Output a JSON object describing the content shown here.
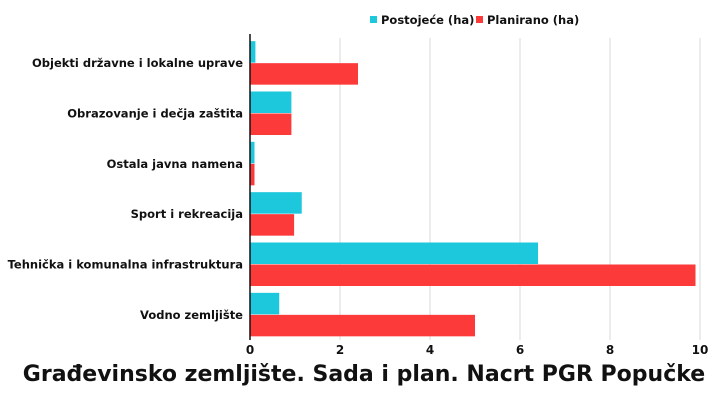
{
  "chart_data": {
    "type": "bar",
    "orientation": "horizontal",
    "title": "Građevinsko zemljište. Sada i plan. Nacrt PGR Popučke",
    "categories": [
      "Objekti državne i lokalne uprave",
      "Obrazovanje i dečja zaštita",
      "Ostala javna namena",
      "Sport i rekreacija",
      "Tehnička i komunalna infrastruktura",
      "Vodno zemljište"
    ],
    "series": [
      {
        "name": "Postojeće (ha)",
        "color": "#1ec8dc",
        "values": [
          0.12,
          0.92,
          0.1,
          1.15,
          6.4,
          0.65
        ]
      },
      {
        "name": "Planirano (ha)",
        "color": "#fc3a3a",
        "values": [
          2.4,
          0.92,
          0.1,
          0.98,
          9.9,
          5.0
        ]
      }
    ],
    "xlim": [
      0,
      10
    ],
    "xticks": [
      "0",
      "2",
      "4",
      "6",
      "8",
      "10"
    ],
    "grid": true,
    "legend_position": "top-center"
  }
}
